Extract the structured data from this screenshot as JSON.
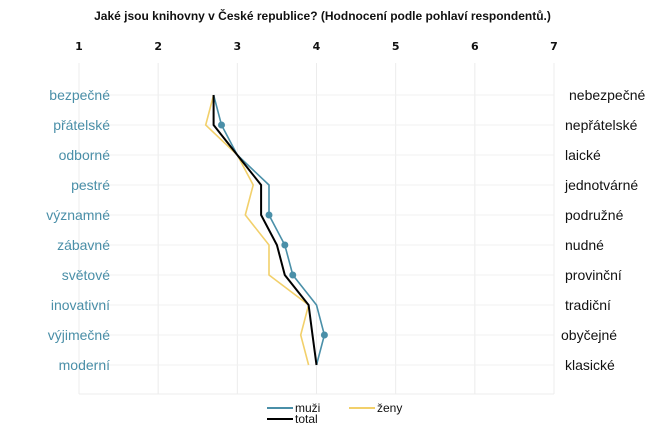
{
  "chart_data": {
    "type": "line",
    "title": "Jaké jsou knihovny v České republice? (Hodnocení podle pohlaví respondentů.)",
    "xlabel": "",
    "ylabel": "",
    "x_ticks": [
      "1",
      "2",
      "3",
      "4",
      "5",
      "6",
      "7"
    ],
    "xlim": [
      1,
      7
    ],
    "orientation": "horizontal-profile",
    "grid": true,
    "legend_position": "bottom",
    "left_labels": [
      "bezpečné",
      "přátelské",
      "odborné",
      "pestré",
      "významné",
      "zábavné",
      "světové",
      "inovativní",
      "výjimečné",
      "moderní"
    ],
    "right_labels": [
      "nebezpečné",
      "nepřátelské",
      "laické",
      "jednotvárné",
      "podružné",
      "nudné",
      "provinční",
      "tradiční",
      "obyčejné",
      "klasické"
    ],
    "series": [
      {
        "name": "muži",
        "color": "#4a8fa8",
        "values": [
          2.7,
          2.8,
          3.0,
          3.4,
          3.4,
          3.6,
          3.7,
          4.0,
          4.1,
          4.0
        ],
        "markers_at": [
          1,
          4,
          5,
          6,
          8
        ]
      },
      {
        "name": "ženy",
        "color": "#f2d06b",
        "values": [
          2.7,
          2.6,
          3.0,
          3.2,
          3.1,
          3.4,
          3.4,
          3.9,
          3.8,
          3.9
        ]
      },
      {
        "name": "total",
        "color": "#000000",
        "values": [
          2.7,
          2.7,
          3.0,
          3.3,
          3.3,
          3.5,
          3.6,
          3.9,
          3.95,
          4.0
        ]
      }
    ]
  },
  "legend": {
    "muzi": "muži",
    "zeny": "ženy",
    "total": "total"
  }
}
